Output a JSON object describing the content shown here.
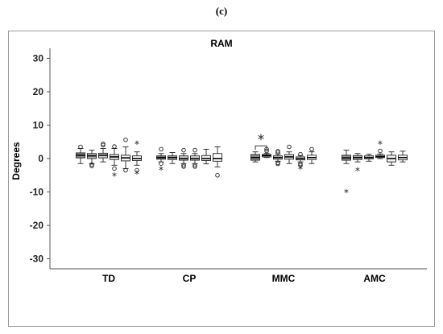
{
  "figure_label": "(c)",
  "chart_data": {
    "type": "box",
    "title": "RAM",
    "xlabel": "",
    "ylabel": "Degrees",
    "ylim": [
      -33,
      33
    ],
    "yticks": [
      30,
      20,
      10,
      0,
      -10,
      -20,
      -30
    ],
    "grid": false,
    "groups": [
      "TD",
      "CP",
      "MMC",
      "AMC"
    ],
    "significance_marker": {
      "group": "MMC",
      "between_boxes": [
        1,
        2
      ],
      "symbol": "*"
    },
    "boxes": [
      {
        "group": "TD",
        "index": 1,
        "fill": "#8c8c8c",
        "min": -1.5,
        "q1": 0.2,
        "median": 1.0,
        "q3": 1.7,
        "max": 3.0,
        "outliers_circle": [
          3.5
        ],
        "outliers_star": []
      },
      {
        "group": "TD",
        "index": 2,
        "fill": "#b8b8b8",
        "min": -1.5,
        "q1": 0.0,
        "median": 0.8,
        "q3": 1.5,
        "max": 2.5,
        "outliers_circle": [
          -1.8,
          -2.2
        ],
        "outliers_star": []
      },
      {
        "group": "TD",
        "index": 3,
        "fill": "#d0d0d0",
        "min": -1.0,
        "q1": 0.2,
        "median": 1.0,
        "q3": 1.6,
        "max": 3.0,
        "outliers_circle": [
          4.0,
          4.4
        ],
        "outliers_star": []
      },
      {
        "group": "TD",
        "index": 4,
        "fill": "#e0e0e0",
        "min": -2.0,
        "q1": -0.3,
        "median": 0.5,
        "q3": 1.2,
        "max": 3.0,
        "outliers_circle": [
          3.6,
          -3.0
        ],
        "outliers_star": [
          -5.0
        ]
      },
      {
        "group": "TD",
        "index": 5,
        "fill": "#f2f2f2",
        "min": -3.0,
        "q1": -0.7,
        "median": 0.2,
        "q3": 1.0,
        "max": 3.5,
        "outliers_circle": [
          5.6,
          -3.5
        ],
        "outliers_star": []
      },
      {
        "group": "TD",
        "index": 6,
        "fill": "#ffffff",
        "min": -2.0,
        "q1": -0.6,
        "median": 0.0,
        "q3": 0.8,
        "max": 2.0,
        "outliers_circle": [
          -3.5
        ],
        "outliers_star": [
          4.5,
          -4.5
        ]
      },
      {
        "group": "CP",
        "index": 1,
        "fill": "#8c8c8c",
        "min": -1.0,
        "q1": -0.2,
        "median": 0.3,
        "q3": 0.8,
        "max": 1.5,
        "outliers_circle": [
          2.8,
          -1.5
        ],
        "outliers_star": [
          -3.2
        ]
      },
      {
        "group": "CP",
        "index": 2,
        "fill": "#b8b8b8",
        "min": -1.5,
        "q1": -0.3,
        "median": 0.3,
        "q3": 0.8,
        "max": 1.8,
        "outliers_circle": [],
        "outliers_star": []
      },
      {
        "group": "CP",
        "index": 3,
        "fill": "#d0d0d0",
        "min": -1.5,
        "q1": -0.5,
        "median": 0.0,
        "q3": 0.8,
        "max": 1.5,
        "outliers_circle": [
          2.5,
          -2.0,
          -2.4
        ],
        "outliers_star": []
      },
      {
        "group": "CP",
        "index": 4,
        "fill": "#e0e0e0",
        "min": -1.5,
        "q1": -0.5,
        "median": 0.0,
        "q3": 0.8,
        "max": 1.5,
        "outliers_circle": [
          2.5,
          -2.0,
          -2.4
        ],
        "outliers_star": []
      },
      {
        "group": "CP",
        "index": 5,
        "fill": "#f2f2f2",
        "min": -1.6,
        "q1": -0.6,
        "median": 0.0,
        "q3": 0.9,
        "max": 2.8,
        "outliers_circle": [],
        "outliers_star": []
      },
      {
        "group": "CP",
        "index": 6,
        "fill": "#ffffff",
        "min": -2.5,
        "q1": -0.8,
        "median": 0.0,
        "q3": 1.5,
        "max": 3.5,
        "outliers_circle": [
          -5.0
        ],
        "outliers_star": []
      },
      {
        "group": "MMC",
        "index": 1,
        "fill": "#8c8c8c",
        "min": -1.0,
        "q1": -0.5,
        "median": 0.3,
        "q3": 1.2,
        "max": 2.0,
        "outliers_circle": [],
        "outliers_star": []
      },
      {
        "group": "MMC",
        "index": 2,
        "fill": "#b8b8b8",
        "min": 0.3,
        "q1": 0.5,
        "median": 0.9,
        "q3": 1.2,
        "max": 1.6,
        "outliers_circle": [
          2.3,
          2.8
        ],
        "outliers_star": []
      },
      {
        "group": "MMC",
        "index": 3,
        "fill": "#d0d0d0",
        "min": -0.8,
        "q1": -0.2,
        "median": 0.3,
        "q3": 0.8,
        "max": 1.3,
        "outliers_circle": [
          1.8,
          2.2,
          -1.3,
          -1.6
        ],
        "outliers_star": []
      },
      {
        "group": "MMC",
        "index": 4,
        "fill": "#e0e0e0",
        "min": -1.5,
        "q1": -0.2,
        "median": 0.5,
        "q3": 1.2,
        "max": 2.0,
        "outliers_circle": [
          3.5
        ],
        "outliers_star": []
      },
      {
        "group": "MMC",
        "index": 5,
        "fill": "#f2f2f2",
        "min": -1.0,
        "q1": -0.4,
        "median": 0.0,
        "q3": 0.5,
        "max": 0.9,
        "outliers_circle": [
          1.3,
          -1.6,
          -2.0
        ],
        "outliers_star": [
          -3.0
        ]
      },
      {
        "group": "MMC",
        "index": 6,
        "fill": "#ffffff",
        "min": -1.5,
        "q1": -0.3,
        "median": 0.3,
        "q3": 1.0,
        "max": 2.0,
        "outliers_circle": [
          2.8
        ],
        "outliers_star": []
      },
      {
        "group": "AMC",
        "index": 1,
        "fill": "#8c8c8c",
        "min": -1.5,
        "q1": -0.5,
        "median": 0.2,
        "q3": 1.0,
        "max": 2.5,
        "outliers_circle": [],
        "outliers_star": [
          -10.0
        ]
      },
      {
        "group": "AMC",
        "index": 2,
        "fill": "#b8b8b8",
        "min": -1.0,
        "q1": -0.3,
        "median": 0.3,
        "q3": 0.9,
        "max": 1.5,
        "outliers_circle": [],
        "outliers_star": [
          -3.5
        ]
      },
      {
        "group": "AMC",
        "index": 3,
        "fill": "#d0d0d0",
        "min": -0.8,
        "q1": -0.1,
        "median": 0.3,
        "q3": 0.8,
        "max": 1.3,
        "outliers_circle": [],
        "outliers_star": []
      },
      {
        "group": "AMC",
        "index": 4,
        "fill": "#e0e0e0",
        "min": 0.0,
        "q1": 0.3,
        "median": 0.6,
        "q3": 1.0,
        "max": 1.4,
        "outliers_circle": [
          2.3
        ],
        "outliers_star": [
          4.5
        ]
      },
      {
        "group": "AMC",
        "index": 5,
        "fill": "#f2f2f2",
        "min": -2.0,
        "q1": -1.0,
        "median": 0.0,
        "q3": 1.0,
        "max": 2.0,
        "outliers_circle": [],
        "outliers_star": []
      },
      {
        "group": "AMC",
        "index": 6,
        "fill": "#ffffff",
        "min": -1.0,
        "q1": -0.4,
        "median": 0.3,
        "q3": 1.0,
        "max": 2.2,
        "outliers_circle": [],
        "outliers_star": []
      }
    ]
  }
}
